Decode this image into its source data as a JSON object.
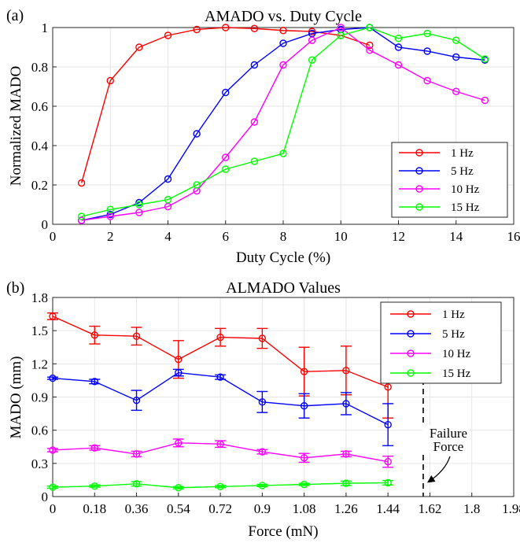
{
  "chart_data": [
    {
      "panel_label": "(a)",
      "type": "line",
      "title": "AMADO vs. Duty Cycle",
      "xlabel": "Duty Cycle (%)",
      "ylabel": "Normalized MADO",
      "xlim": [
        0,
        16
      ],
      "ylim": [
        0,
        1
      ],
      "xticks": [
        0,
        2,
        4,
        6,
        8,
        10,
        12,
        14,
        16
      ],
      "xtick_labels": [
        "0",
        "2",
        "4",
        "6",
        "8",
        "10",
        "12",
        "14",
        "16"
      ],
      "yticks": [
        0,
        0.2,
        0.4,
        0.6,
        0.8,
        1
      ],
      "ytick_labels": [
        "0",
        "0.2",
        "0.4",
        "0.6",
        "0.8",
        "1"
      ],
      "grid": true,
      "legend_position": "bottom-right",
      "x": [
        1,
        2,
        3,
        4,
        5,
        6,
        7,
        8,
        9,
        10,
        11,
        12,
        13,
        14,
        15
      ],
      "series": [
        {
          "name": "1 Hz",
          "color": "#ff0000",
          "values": [
            0.21,
            0.73,
            0.9,
            0.96,
            0.99,
            1.0,
            0.995,
            0.985,
            0.98,
            0.96,
            0.91,
            null,
            null,
            null,
            null
          ]
        },
        {
          "name": "5 Hz",
          "color": "#0000ff",
          "values": [
            0.02,
            0.05,
            0.11,
            0.23,
            0.46,
            0.67,
            0.81,
            0.92,
            0.97,
            0.99,
            1.0,
            0.9,
            0.88,
            0.85,
            0.835
          ]
        },
        {
          "name": "10 Hz",
          "color": "#ff00ff",
          "values": [
            0.02,
            0.04,
            0.06,
            0.09,
            0.17,
            0.34,
            0.52,
            0.81,
            0.935,
            1.0,
            0.885,
            0.81,
            0.73,
            0.675,
            0.63
          ]
        },
        {
          "name": "15 Hz",
          "color": "#00ff00",
          "values": [
            0.04,
            0.075,
            0.1,
            0.125,
            0.2,
            0.28,
            0.32,
            0.36,
            0.835,
            0.96,
            1.0,
            0.945,
            0.97,
            0.935,
            0.84
          ]
        }
      ]
    },
    {
      "panel_label": "(b)",
      "type": "line",
      "title": "ALMADO Values",
      "xlabel": "Force (mN)",
      "ylabel": "MADO (mm)",
      "xlim": [
        0,
        1.98
      ],
      "ylim": [
        0,
        1.8
      ],
      "xticks": [
        0,
        0.18,
        0.36,
        0.54,
        0.72,
        0.9,
        1.08,
        1.26,
        1.44,
        1.62,
        1.8,
        1.98
      ],
      "xtick_labels": [
        "0",
        "0.18",
        "0.36",
        "0.54",
        "0.72",
        "0.9",
        "1.08",
        "1.26",
        "1.44",
        "1.62",
        "1.8",
        "1.98"
      ],
      "yticks": [
        0,
        0.3,
        0.6,
        0.9,
        1.2,
        1.5,
        1.8
      ],
      "ytick_labels": [
        "0",
        "0.3",
        "0.6",
        "0.9",
        "1.2",
        "1.5",
        "1.8"
      ],
      "grid": true,
      "legend_position": "top-right",
      "x": [
        0,
        0.18,
        0.36,
        0.54,
        0.72,
        0.9,
        1.08,
        1.26,
        1.44
      ],
      "series": [
        {
          "name": "1 Hz",
          "color": "#ff0000",
          "values": [
            1.63,
            1.46,
            1.45,
            1.24,
            1.44,
            1.43,
            1.13,
            1.14,
            0.99
          ],
          "errors": [
            0.03,
            0.08,
            0.08,
            0.17,
            0.08,
            0.09,
            0.22,
            0.22,
            0.28
          ]
        },
        {
          "name": "5 Hz",
          "color": "#0000ff",
          "values": [
            1.07,
            1.04,
            0.87,
            1.12,
            1.08,
            0.855,
            0.82,
            0.84,
            0.65
          ],
          "errors": [
            0.01,
            0.02,
            0.09,
            0.03,
            0.02,
            0.095,
            0.11,
            0.1,
            0.19
          ]
        },
        {
          "name": "10 Hz",
          "color": "#ff00ff",
          "values": [
            0.42,
            0.44,
            0.385,
            0.485,
            0.475,
            0.405,
            0.35,
            0.385,
            0.315
          ],
          "errors": [
            0.015,
            0.02,
            0.025,
            0.035,
            0.03,
            0.02,
            0.04,
            0.025,
            0.05
          ]
        },
        {
          "name": "15 Hz",
          "color": "#00ff00",
          "values": [
            0.085,
            0.095,
            0.115,
            0.08,
            0.09,
            0.1,
            0.11,
            0.12,
            0.125
          ],
          "errors": [
            0.01,
            0.01,
            0.02,
            0.01,
            0.01,
            0.01,
            0.01,
            0.02,
            0.02
          ]
        }
      ],
      "reference_line": {
        "x": 1.62,
        "style": "dashed",
        "color": "#000000"
      },
      "annotation": {
        "text_line1": "Failure",
        "text_line2": "Force",
        "x": 1.62,
        "y": 0.5
      }
    }
  ]
}
